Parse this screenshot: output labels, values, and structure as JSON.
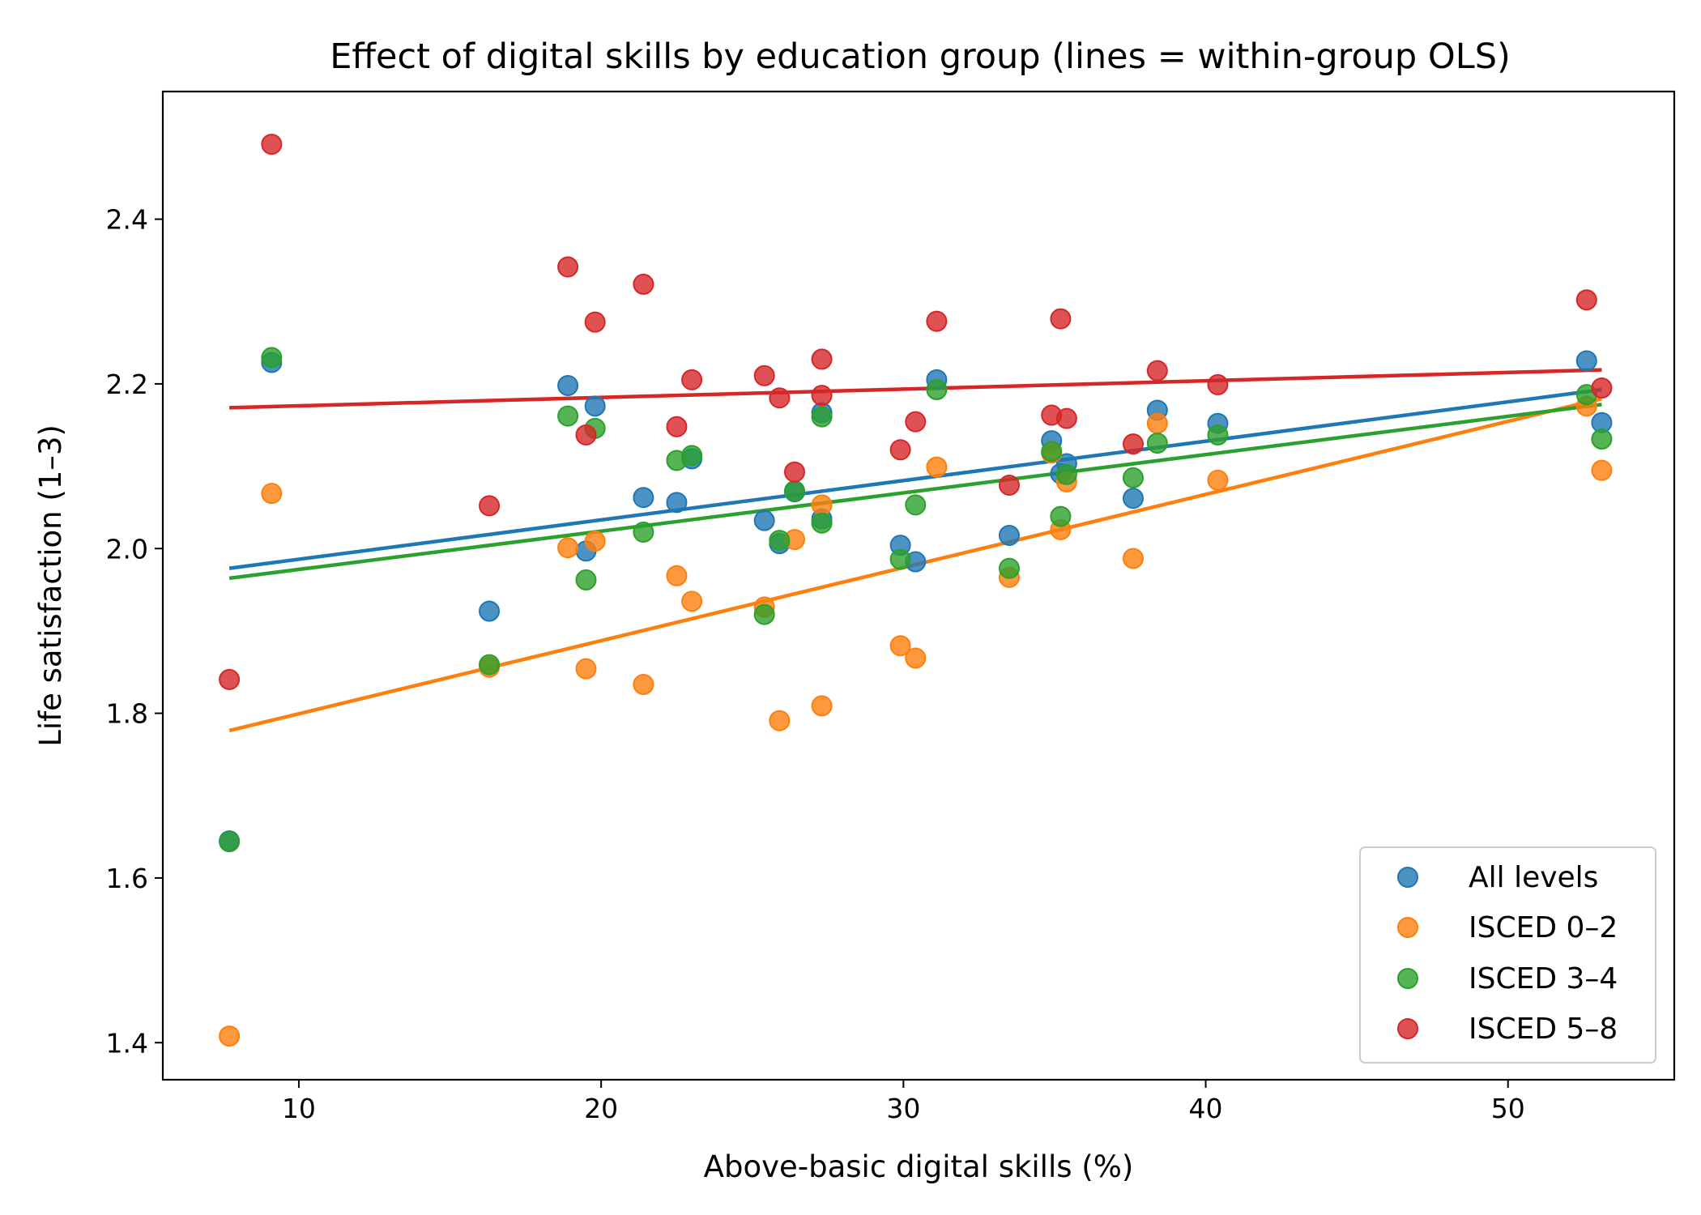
{
  "chart_data": {
    "type": "scatter",
    "title": "Effect of digital skills by education group (lines = within-group OLS)",
    "xlabel": "Above-basic digital skills (%)",
    "ylabel": "Life satisfaction (1–3)",
    "xlim": [
      5.5,
      55.5
    ],
    "ylim": [
      1.355,
      2.555
    ],
    "xticks": [
      10,
      20,
      30,
      40,
      50
    ],
    "yticks": [
      1.4,
      1.6,
      1.8,
      2.0,
      2.2,
      2.4
    ],
    "xtick_labels": [
      "10",
      "20",
      "30",
      "40",
      "50"
    ],
    "ytick_labels": [
      "1.4",
      "1.6",
      "1.8",
      "2.0",
      "2.2",
      "2.4"
    ],
    "grid": false,
    "legend_position": "lower-right",
    "series": [
      {
        "name": "All levels",
        "color": "#1f77b4",
        "points": [
          [
            7.7,
            1.645
          ],
          [
            9.1,
            2.226
          ],
          [
            16.3,
            1.924
          ],
          [
            18.9,
            2.198
          ],
          [
            19.5,
            1.997
          ],
          [
            19.8,
            2.173
          ],
          [
            21.4,
            2.062
          ],
          [
            22.5,
            2.056
          ],
          [
            23.0,
            2.109
          ],
          [
            25.4,
            2.034
          ],
          [
            25.9,
            2.006
          ],
          [
            26.4,
            2.069
          ],
          [
            27.3,
            2.165
          ],
          [
            27.3,
            2.036
          ],
          [
            29.9,
            2.004
          ],
          [
            30.4,
            1.984
          ],
          [
            31.1,
            2.205
          ],
          [
            33.5,
            2.016
          ],
          [
            34.9,
            2.131
          ],
          [
            35.2,
            2.091
          ],
          [
            35.4,
            2.103
          ],
          [
            37.6,
            2.061
          ],
          [
            38.4,
            2.168
          ],
          [
            40.4,
            2.152
          ],
          [
            52.6,
            2.228
          ],
          [
            53.1,
            2.153
          ]
        ],
        "fit": [
          [
            7.7,
            1.976
          ],
          [
            53.1,
            2.193
          ]
        ]
      },
      {
        "name": "ISCED 0–2",
        "color": "#ff7f0e",
        "points": [
          [
            7.7,
            1.408
          ],
          [
            9.1,
            2.067
          ],
          [
            16.3,
            1.856
          ],
          [
            18.9,
            2.001
          ],
          [
            19.5,
            1.854
          ],
          [
            19.8,
            2.009
          ],
          [
            21.4,
            1.835
          ],
          [
            22.5,
            1.967
          ],
          [
            23.0,
            1.936
          ],
          [
            25.4,
            1.929
          ],
          [
            25.9,
            1.791
          ],
          [
            26.4,
            2.011
          ],
          [
            27.3,
            2.053
          ],
          [
            27.3,
            1.809
          ],
          [
            29.9,
            1.882
          ],
          [
            30.4,
            1.867
          ],
          [
            31.1,
            2.099
          ],
          [
            33.5,
            1.965
          ],
          [
            34.9,
            2.116
          ],
          [
            35.2,
            2.023
          ],
          [
            35.4,
            2.081
          ],
          [
            37.6,
            1.988
          ],
          [
            38.4,
            2.152
          ],
          [
            40.4,
            2.083
          ],
          [
            52.6,
            2.173
          ],
          [
            53.1,
            2.095
          ]
        ],
        "fit": [
          [
            7.7,
            1.779
          ],
          [
            53.1,
            2.182
          ]
        ]
      },
      {
        "name": "ISCED 3–4",
        "color": "#2ca02c",
        "points": [
          [
            7.7,
            1.644
          ],
          [
            9.1,
            2.232
          ],
          [
            16.3,
            1.859
          ],
          [
            18.9,
            2.161
          ],
          [
            19.5,
            1.962
          ],
          [
            19.8,
            2.146
          ],
          [
            21.4,
            2.02
          ],
          [
            22.5,
            2.107
          ],
          [
            23.0,
            2.113
          ],
          [
            25.4,
            1.92
          ],
          [
            25.9,
            2.01
          ],
          [
            26.4,
            2.07
          ],
          [
            27.3,
            2.16
          ],
          [
            27.3,
            2.031
          ],
          [
            29.9,
            1.987
          ],
          [
            30.4,
            2.053
          ],
          [
            31.1,
            2.193
          ],
          [
            33.5,
            1.976
          ],
          [
            34.9,
            2.118
          ],
          [
            35.2,
            2.039
          ],
          [
            35.4,
            2.09
          ],
          [
            37.6,
            2.086
          ],
          [
            38.4,
            2.128
          ],
          [
            40.4,
            2.138
          ],
          [
            52.6,
            2.187
          ],
          [
            53.1,
            2.133
          ]
        ],
        "fit": [
          [
            7.7,
            1.964
          ],
          [
            53.1,
            2.175
          ]
        ]
      },
      {
        "name": "ISCED 5–8",
        "color": "#d62728",
        "points": [
          [
            7.7,
            1.841
          ],
          [
            9.1,
            2.491
          ],
          [
            16.3,
            2.052
          ],
          [
            18.9,
            2.342
          ],
          [
            19.5,
            2.138
          ],
          [
            19.8,
            2.275
          ],
          [
            21.4,
            2.321
          ],
          [
            22.5,
            2.148
          ],
          [
            23.0,
            2.205
          ],
          [
            25.4,
            2.21
          ],
          [
            25.9,
            2.183
          ],
          [
            26.4,
            2.093
          ],
          [
            27.3,
            2.23
          ],
          [
            27.3,
            2.186
          ],
          [
            29.9,
            2.12
          ],
          [
            30.4,
            2.154
          ],
          [
            31.1,
            2.276
          ],
          [
            33.5,
            2.077
          ],
          [
            34.9,
            2.162
          ],
          [
            35.2,
            2.279
          ],
          [
            35.4,
            2.158
          ],
          [
            37.6,
            2.127
          ],
          [
            38.4,
            2.216
          ],
          [
            40.4,
            2.199
          ],
          [
            52.6,
            2.302
          ],
          [
            53.1,
            2.195
          ]
        ],
        "fit": [
          [
            7.7,
            2.171
          ],
          [
            53.1,
            2.217
          ]
        ]
      }
    ]
  }
}
